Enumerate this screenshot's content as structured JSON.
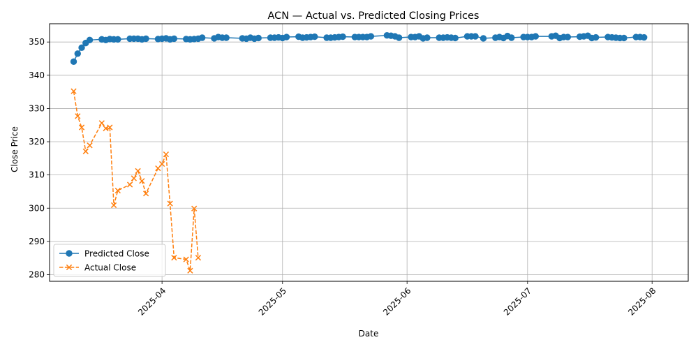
{
  "chart_data": {
    "type": "line",
    "title": "ACN — Actual vs. Predicted Closing Prices",
    "xlabel": "Date",
    "ylabel": "Close Price",
    "x_range": [
      "2025-03-04",
      "2025-08-10"
    ],
    "ylim": [
      278,
      355.5
    ],
    "x_ticks": [
      "2025-04",
      "2025-05",
      "2025-06",
      "2025-07",
      "2025-08"
    ],
    "y_ticks": [
      280,
      290,
      300,
      310,
      320,
      330,
      340,
      350
    ],
    "grid": true,
    "legend_position": "lower-left",
    "series": [
      {
        "name": "Predicted Close",
        "color": "#1f77b4",
        "marker": "circle",
        "line": "solid",
        "x": [
          "2025-03-10",
          "2025-03-11",
          "2025-03-12",
          "2025-03-13",
          "2025-03-14",
          "2025-03-17",
          "2025-03-18",
          "2025-03-19",
          "2025-03-20",
          "2025-03-21",
          "2025-03-24",
          "2025-03-25",
          "2025-03-26",
          "2025-03-27",
          "2025-03-28",
          "2025-03-31",
          "2025-04-01",
          "2025-04-02",
          "2025-04-03",
          "2025-04-04",
          "2025-04-07",
          "2025-04-08",
          "2025-04-09",
          "2025-04-10",
          "2025-04-11",
          "2025-04-14",
          "2025-04-15",
          "2025-04-16",
          "2025-04-17",
          "2025-04-21",
          "2025-04-22",
          "2025-04-23",
          "2025-04-24",
          "2025-04-25",
          "2025-04-28",
          "2025-04-29",
          "2025-04-30",
          "2025-05-01",
          "2025-05-02",
          "2025-05-05",
          "2025-05-06",
          "2025-05-07",
          "2025-05-08",
          "2025-05-09",
          "2025-05-12",
          "2025-05-13",
          "2025-05-14",
          "2025-05-15",
          "2025-05-16",
          "2025-05-19",
          "2025-05-20",
          "2025-05-21",
          "2025-05-22",
          "2025-05-23",
          "2025-05-27",
          "2025-05-28",
          "2025-05-29",
          "2025-05-30",
          "2025-06-02",
          "2025-06-03",
          "2025-06-04",
          "2025-06-05",
          "2025-06-06",
          "2025-06-09",
          "2025-06-10",
          "2025-06-11",
          "2025-06-12",
          "2025-06-13",
          "2025-06-16",
          "2025-06-17",
          "2025-06-18",
          "2025-06-20",
          "2025-06-23",
          "2025-06-24",
          "2025-06-25",
          "2025-06-26",
          "2025-06-27",
          "2025-06-30",
          "2025-07-01",
          "2025-07-02",
          "2025-07-03",
          "2025-07-07",
          "2025-07-08",
          "2025-07-09",
          "2025-07-10",
          "2025-07-11",
          "2025-07-14",
          "2025-07-15",
          "2025-07-16",
          "2025-07-17",
          "2025-07-18",
          "2025-07-21",
          "2025-07-22",
          "2025-07-23",
          "2025-07-24",
          "2025-07-25",
          "2025-07-28",
          "2025-07-29",
          "2025-07-30"
        ],
        "values": [
          344.1,
          346.5,
          348.3,
          349.7,
          350.6,
          350.8,
          350.6,
          350.9,
          350.8,
          350.8,
          351.0,
          351.0,
          351.0,
          350.8,
          351.0,
          350.9,
          351.0,
          351.1,
          350.8,
          351.0,
          350.9,
          350.8,
          350.9,
          351.0,
          351.3,
          351.1,
          351.5,
          351.3,
          351.3,
          351.1,
          351.0,
          351.3,
          351.0,
          351.2,
          351.3,
          351.3,
          351.4,
          351.2,
          351.5,
          351.6,
          351.3,
          351.4,
          351.5,
          351.6,
          351.3,
          351.3,
          351.4,
          351.5,
          351.6,
          351.5,
          351.5,
          351.5,
          351.5,
          351.7,
          352.0,
          351.9,
          351.7,
          351.3,
          351.5,
          351.5,
          351.7,
          351.1,
          351.3,
          351.3,
          351.3,
          351.4,
          351.3,
          351.2,
          351.7,
          351.7,
          351.7,
          351.1,
          351.3,
          351.5,
          351.2,
          351.8,
          351.3,
          351.5,
          351.5,
          351.5,
          351.7,
          351.7,
          351.9,
          351.2,
          351.5,
          351.5,
          351.6,
          351.7,
          351.9,
          351.2,
          351.4,
          351.5,
          351.4,
          351.3,
          351.2,
          351.2,
          351.5,
          351.5,
          351.4
        ]
      },
      {
        "name": "Actual Close",
        "color": "#ff7f0e",
        "marker": "x",
        "line": "dashed",
        "x": [
          "2025-03-10",
          "2025-03-11",
          "2025-03-12",
          "2025-03-13",
          "2025-03-14",
          "2025-03-17",
          "2025-03-18",
          "2025-03-19",
          "2025-03-20",
          "2025-03-21",
          "2025-03-24",
          "2025-03-25",
          "2025-03-26",
          "2025-03-27",
          "2025-03-28",
          "2025-03-31",
          "2025-04-01",
          "2025-04-02",
          "2025-04-03",
          "2025-04-04",
          "2025-04-07",
          "2025-04-08",
          "2025-04-09",
          "2025-04-10"
        ],
        "values": [
          335.2,
          327.7,
          324.3,
          317.1,
          318.9,
          325.6,
          324.0,
          324.3,
          300.9,
          305.3,
          307.1,
          309.0,
          311.2,
          308.2,
          304.4,
          312.0,
          313.3,
          316.2,
          301.4,
          285.1,
          284.6,
          281.2,
          299.9,
          285.1
        ]
      }
    ]
  }
}
